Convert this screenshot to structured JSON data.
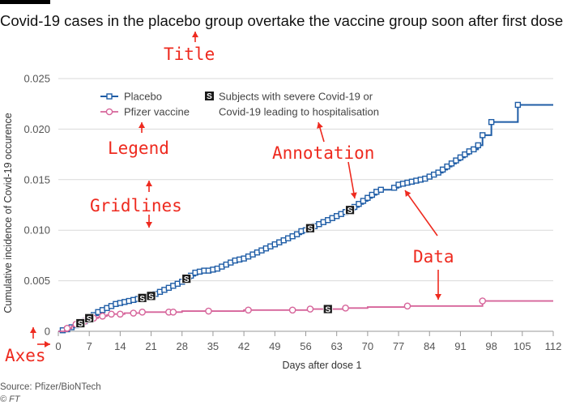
{
  "title": "Covid-19 cases in the placebo group overtake the vaccine group soon after first dose",
  "source": "Source: Pfizer/BioNTech",
  "copyright": "© FT",
  "annotation_labels": {
    "title": "Title",
    "legend": "Legend",
    "annotation": "Annotation",
    "gridlines": "Gridlines",
    "data": "Data",
    "axes": "Axes"
  },
  "colors": {
    "placebo": "#1f5da6",
    "vaccine": "#d6649a",
    "annotation": "#ee2a1f"
  },
  "chart_data": {
    "type": "line",
    "xlabel": "Days after dose 1",
    "ylabel": "Cumulative incidence of Covid-19 occurence",
    "xlim": [
      0,
      112
    ],
    "ylim": [
      0,
      0.025
    ],
    "x_ticks": [
      "0",
      "7",
      "14",
      "21",
      "28",
      "35",
      "42",
      "49",
      "56",
      "63",
      "70",
      "77",
      "84",
      "91",
      "98",
      "105",
      "112"
    ],
    "y_ticks": [
      "0",
      "0.005",
      "0.010",
      "0.015",
      "0.020",
      "0.025"
    ],
    "grid": "horizontal",
    "legend": {
      "placement": "top-left",
      "entries": [
        "Placebo",
        "Pfizer vaccine"
      ],
      "severe_note": "Subjects with severe Covid-19 or Covid-19 leading to hospitalisation",
      "severe_marker": "S"
    },
    "series": [
      {
        "name": "Placebo",
        "x": [
          0,
          1,
          2,
          3,
          4,
          5,
          6,
          7,
          8,
          9,
          10,
          11,
          12,
          13,
          14,
          15,
          16,
          17,
          18,
          19,
          20,
          21,
          22,
          23,
          24,
          25,
          26,
          27,
          28,
          29,
          30,
          31,
          32,
          33,
          34,
          35,
          36,
          37,
          38,
          39,
          40,
          41,
          42,
          43,
          44,
          45,
          46,
          47,
          48,
          49,
          50,
          51,
          52,
          53,
          54,
          55,
          56,
          57,
          58,
          59,
          60,
          61,
          62,
          63,
          64,
          65,
          66,
          67,
          68,
          69,
          70,
          71,
          72,
          73,
          74,
          75,
          76,
          77,
          78,
          79,
          80,
          81,
          82,
          83,
          84,
          85,
          86,
          87,
          88,
          89,
          90,
          91,
          92,
          93,
          94,
          95,
          96,
          97,
          98,
          99,
          100,
          101,
          102,
          103,
          104,
          105,
          106,
          107,
          108,
          109,
          110,
          111,
          112
        ],
        "y": [
          0,
          0.0001,
          0.0002,
          0.0004,
          0.0006,
          0.0008,
          0.001,
          0.0013,
          0.0016,
          0.0019,
          0.0021,
          0.0023,
          0.0025,
          0.0027,
          0.0028,
          0.0029,
          0.003,
          0.0031,
          0.0032,
          0.0033,
          0.0034,
          0.0035,
          0.0037,
          0.0039,
          0.0041,
          0.0043,
          0.0045,
          0.0047,
          0.0049,
          0.0052,
          0.0055,
          0.0058,
          0.0059,
          0.006,
          0.006,
          0.0061,
          0.0062,
          0.0064,
          0.0066,
          0.0068,
          0.007,
          0.0071,
          0.0072,
          0.0074,
          0.0076,
          0.0078,
          0.008,
          0.0082,
          0.0084,
          0.0086,
          0.0088,
          0.009,
          0.0092,
          0.0094,
          0.0096,
          0.0099,
          0.01,
          0.0102,
          0.0104,
          0.0106,
          0.0108,
          0.011,
          0.0112,
          0.0114,
          0.0116,
          0.0118,
          0.012,
          0.0123,
          0.0126,
          0.0129,
          0.0132,
          0.0135,
          0.0138,
          0.014,
          0.014,
          0.014,
          0.0142,
          0.0145,
          0.0146,
          0.0147,
          0.0148,
          0.0149,
          0.015,
          0.0151,
          0.0153,
          0.0155,
          0.0157,
          0.016,
          0.0163,
          0.0166,
          0.0169,
          0.0172,
          0.0175,
          0.0178,
          0.018,
          0.0184,
          0.0194,
          0.0194,
          0.0207,
          0.0207,
          0.0207,
          0.0207,
          0.0207,
          0.0207,
          0.0224,
          0.0224,
          0.0224,
          0.0224,
          0.0224,
          0.0224,
          0.0224,
          0.0224,
          0.0224
        ],
        "markers": [
          1,
          2,
          3,
          4,
          5,
          6,
          7,
          8,
          9,
          10,
          11,
          12,
          13,
          14,
          15,
          16,
          17,
          18,
          19,
          20,
          21,
          22,
          23,
          24,
          25,
          26,
          27,
          28,
          29,
          30,
          31,
          32,
          33,
          34,
          35,
          36,
          37,
          38,
          39,
          40,
          41,
          42,
          43,
          44,
          45,
          46,
          47,
          48,
          49,
          50,
          51,
          52,
          53,
          54,
          55,
          56,
          57,
          58,
          59,
          60,
          61,
          62,
          63,
          64,
          65,
          66,
          67,
          68,
          69,
          70,
          71,
          72,
          73,
          76,
          77,
          78,
          79,
          80,
          81,
          82,
          83,
          84,
          85,
          86,
          87,
          88,
          89,
          90,
          91,
          92,
          93,
          94,
          95,
          96,
          98,
          104
        ],
        "end_x": 112
      },
      {
        "name": "Pfizer vaccine",
        "x": [
          0,
          2,
          3,
          4,
          5,
          6,
          7,
          8,
          9,
          10,
          11,
          12,
          13,
          14,
          15,
          16,
          17,
          18,
          19,
          20,
          21,
          22,
          23,
          24,
          25,
          26,
          27,
          28,
          30,
          33,
          35,
          38,
          42,
          48,
          53,
          57,
          60,
          65,
          70,
          79,
          85,
          96,
          105,
          112
        ],
        "y": [
          0,
          0.0003,
          0.0005,
          0.0007,
          0.0009,
          0.001,
          0.0012,
          0.0013,
          0.0014,
          0.0015,
          0.0016,
          0.0017,
          0.0017,
          0.0017,
          0.0018,
          0.0018,
          0.0018,
          0.0018,
          0.0019,
          0.0019,
          0.0019,
          0.0019,
          0.0019,
          0.0019,
          0.0019,
          0.0019,
          0.0019,
          0.002,
          0.002,
          0.002,
          0.002,
          0.002,
          0.0021,
          0.0021,
          0.0021,
          0.0022,
          0.0022,
          0.0023,
          0.0024,
          0.0025,
          0.0025,
          0.003,
          0.003,
          0.003
        ],
        "markers": [
          2,
          4,
          6,
          8,
          10,
          12,
          14,
          17,
          19,
          25,
          26,
          34,
          43,
          53,
          57,
          65,
          79,
          96
        ],
        "end_x": 112
      }
    ],
    "severe_cases": [
      {
        "series": "Placebo",
        "x": 5
      },
      {
        "series": "Placebo",
        "x": 7
      },
      {
        "series": "Placebo",
        "x": 19
      },
      {
        "series": "Placebo",
        "x": 21
      },
      {
        "series": "Placebo",
        "x": 29
      },
      {
        "series": "Placebo",
        "x": 57
      },
      {
        "series": "Placebo",
        "x": 66
      },
      {
        "series": "Pfizer vaccine",
        "x": 61
      }
    ]
  }
}
